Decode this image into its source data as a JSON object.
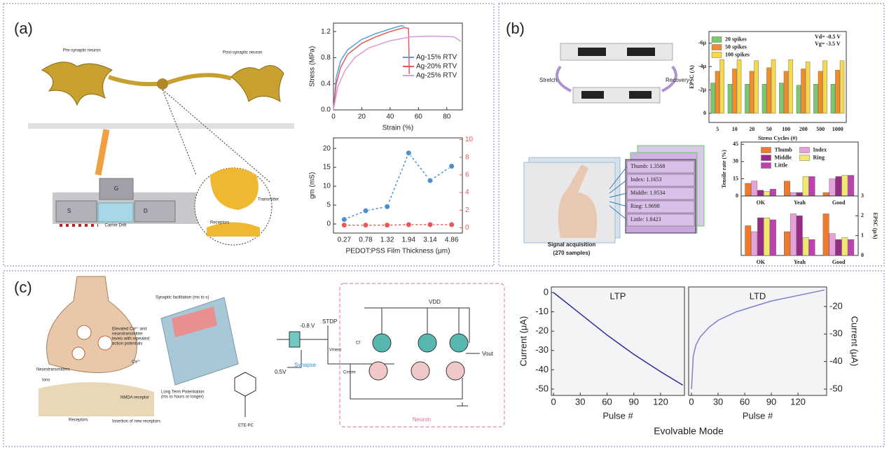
{
  "figure": {
    "a": {
      "label": "(a)",
      "pre": "Pre-synaptic neuron",
      "post": "Post-synaptic neuron",
      "gate": "G",
      "source": "S",
      "drain": "D",
      "drift": "Carrier Drift",
      "transmitter": "Transmitter",
      "receptors": "Receptors"
    },
    "b": {
      "label": "(b)",
      "stretch": "Stretch",
      "recovery": "Recovery",
      "signals": [
        "Thumb: 1.3568",
        "Index: 1.1653",
        "Middle: 1.9534",
        "Ring: 1.9698",
        "Little: 1.8423"
      ],
      "acquisition": "Signal acquisition",
      "samples": "(270 samples)"
    },
    "c": {
      "label": "(c)",
      "facilitation": "Synaptic facilitation (ms to s)",
      "elevated": [
        "Elevated Ca²⁺ and",
        "neurotransmitter",
        "levels with repeated",
        "action potentials"
      ],
      "calcium": "Ca²⁺",
      "neurotransmitters": "Neurotransmitters",
      "ions": "Ions",
      "nmda": "NMDA receptor",
      "receptors": "Receptors",
      "insertion": "Insertion of new receptors",
      "ltp_text": [
        "Long Term Potentiation",
        "(ms to hours or longer)"
      ],
      "molecule": "ETE-PC",
      "circuit": {
        "bias": "-0.8 V",
        "stdp": "STDP",
        "vmem": "Vmem",
        "cf": "Cf",
        "vdd": "VDD",
        "cmem": "Cmem",
        "vout": "Vout",
        "vin": "0.5V",
        "synapse": "Synapse",
        "neuron": "Neuron"
      },
      "mode": "Evolvable Mode"
    }
  },
  "chart_data": [
    {
      "type": "line",
      "xlabel": "Strain (%)",
      "ylabel": "Stress (MPa)",
      "xlim": [
        0,
        91
      ],
      "xticks": [
        0,
        20,
        40,
        60,
        80
      ],
      "ylim": [
        0,
        1.33
      ],
      "yticks": [
        {
          "value": 0,
          "label": "0.0"
        },
        {
          "value": 0.4,
          "label": "0.4"
        },
        {
          "value": 0.8,
          "label": "0.8"
        },
        {
          "value": 1.2,
          "label": "1.2"
        }
      ],
      "legend": "center right",
      "series": [
        {
          "name": "Ag-15% RTV",
          "color": "#4fa3d9",
          "x": [
            0,
            2,
            5,
            10,
            20,
            30,
            40,
            48,
            50
          ],
          "values": [
            0,
            0.5,
            0.75,
            0.92,
            1.08,
            1.17,
            1.24,
            1.29,
            1.28
          ]
        },
        {
          "name": "Ag-20% RTV",
          "color": "#e8585a",
          "x": [
            0,
            2,
            5,
            10,
            20,
            30,
            40,
            50,
            53,
            53.5
          ],
          "values": [
            0,
            0.4,
            0.65,
            0.85,
            1.02,
            1.12,
            1.2,
            1.26,
            1.25,
            0.55
          ]
        },
        {
          "name": "Ag-25% RTV",
          "color": "#d89ad8",
          "x": [
            0,
            3,
            8,
            15,
            25,
            40,
            55,
            70,
            85,
            90
          ],
          "values": [
            0,
            0.35,
            0.6,
            0.8,
            0.95,
            1.06,
            1.12,
            1.13,
            1.12,
            1.05
          ]
        }
      ]
    },
    {
      "type": "line",
      "markers": true,
      "line_style": "dashed",
      "xlabel": "PEDOT:PSS  Film Thickness (μm)",
      "ylabel": "gm (mS)",
      "categories": [
        "0.27",
        "0.78",
        "1.32",
        "1.94",
        "3.14",
        "4.86"
      ],
      "ylim": [
        -2.4,
        22.8
      ],
      "yticks": [
        0,
        5,
        10,
        15,
        20
      ],
      "y2lim": [
        -0.6,
        10.2
      ],
      "y2ticks": [
        0,
        2,
        4,
        6,
        8,
        10
      ],
      "series": [
        {
          "color": "#4a90d0",
          "values": [
            1.2,
            3.5,
            4.6,
            18.8,
            11.5,
            15.3
          ]
        },
        {
          "color": "#e8585a",
          "axis": "y2",
          "values": [
            0.3,
            0.3,
            0.3,
            0.35,
            0.35,
            0.35
          ]
        }
      ]
    },
    {
      "type": "bar",
      "xlabel": "Stress Cycles (#)",
      "ylabel": "EPSC (A)",
      "categories": [
        "5",
        "10",
        "20",
        "50",
        "100",
        "200",
        "500",
        "1000"
      ],
      "ylim": [
        7.8e-07,
        -7e-06
      ],
      "yticks": [
        {
          "value": -6e-06,
          "label": "-6μ"
        },
        {
          "value": -4e-06,
          "label": "-4μ"
        },
        {
          "value": -2e-06,
          "label": "-2μ"
        },
        0
      ],
      "legend": "upper left",
      "annotations": [
        "Vd= -0.5 V",
        "Vg= -3.5 V"
      ],
      "series": [
        {
          "name": "20   spikes",
          "color": "#7bc96f",
          "values": [
            -2.6e-06,
            -2.5e-06,
            -2.5e-06,
            -2.5e-06,
            -2.6e-06,
            -2.4e-06,
            -2.5e-06,
            -2.5e-06
          ]
        },
        {
          "name": "50   spikes",
          "color": "#f28c28",
          "values": [
            -3.6e-06,
            -3.8e-06,
            -3.6e-06,
            -3.9e-06,
            -3.6e-06,
            -3.8e-06,
            -3.6e-06,
            -3.7e-06
          ]
        },
        {
          "name": "100  spikes",
          "color": "#f5d94a",
          "values": [
            -4.6e-06,
            -4.6e-06,
            -4.5e-06,
            -4.6e-06,
            -4.6e-06,
            -4.4e-06,
            -4.5e-06,
            -4.5e-06
          ]
        }
      ]
    },
    {
      "type": "bar",
      "ylabel": "Tensile rate (%)",
      "categories": [
        "OK",
        "Yeah",
        "Good"
      ],
      "ylim": [
        0,
        47
      ],
      "yticks": [
        0,
        15,
        30,
        45
      ],
      "legend": "upper center",
      "legend_columns": 2,
      "series": [
        {
          "name": "Thumb",
          "color": "#f07a2a",
          "values": [
            11,
            13,
            3
          ]
        },
        {
          "name": "Index",
          "color": "#e8a0d8",
          "values": [
            13,
            3,
            15
          ]
        },
        {
          "name": "Middle",
          "color": "#9a2a8a",
          "values": [
            5,
            3,
            17
          ]
        },
        {
          "name": "Ring",
          "color": "#f0e870",
          "values": [
            4,
            17,
            18
          ]
        },
        {
          "name": "Little",
          "color": "#c040b0",
          "values": [
            6,
            17,
            18
          ]
        }
      ]
    },
    {
      "type": "bar",
      "ylabel": "EPSC (μA)",
      "yaxis_side": "right",
      "categories": [
        "OK",
        "Yeah",
        "Good"
      ],
      "ylim": [
        0,
        3
      ],
      "yticks": [
        0,
        1,
        2,
        3
      ],
      "series": [
        {
          "color": "#f07a2a",
          "values": [
            1.5,
            1.2,
            2.1
          ]
        },
        {
          "color": "#e8a0d8",
          "values": [
            1.2,
            2.1,
            1.1
          ]
        },
        {
          "color": "#9a2a8a",
          "values": [
            1.9,
            2.0,
            0.8
          ]
        },
        {
          "color": "#f0e870",
          "values": [
            1.9,
            0.9,
            0.9
          ]
        },
        {
          "color": "#c040b0",
          "values": [
            1.8,
            0.8,
            0.8
          ]
        }
      ]
    },
    {
      "type": "line",
      "title": "LTP",
      "xlabel": "Pulse #",
      "ylabel": "Current (μA)",
      "xlim": [
        -2.4,
        146.7
      ],
      "xticks": [
        0,
        30,
        60,
        90,
        120
      ],
      "ylim": [
        -53.3,
        2.9
      ],
      "yticks": [
        0,
        -10,
        -20,
        -30,
        -40,
        -50
      ],
      "series": [
        {
          "color": "#2a2a9a",
          "x": [
            0,
            30,
            60,
            90,
            120,
            145
          ],
          "values": [
            0,
            -11,
            -22,
            -32,
            -41,
            -48
          ]
        }
      ]
    },
    {
      "type": "line",
      "title": "LTD",
      "xlabel": "Pulse #",
      "ylabel": "Current (μA)",
      "yaxis_side": "right",
      "xlim": [
        -3.2,
        152.3
      ],
      "xticks": [
        0,
        30,
        60,
        90,
        120
      ],
      "ylim": [
        -52.3,
        -12.9
      ],
      "yticks": [
        -20,
        -30,
        -40,
        -50
      ],
      "series": [
        {
          "color": "#7b7fd0",
          "x": [
            0,
            2,
            5,
            10,
            20,
            30,
            50,
            70,
            90,
            120,
            150
          ],
          "values": [
            -50,
            -38,
            -34,
            -31,
            -27.5,
            -25,
            -22,
            -20,
            -18,
            -16,
            -14
          ]
        }
      ]
    }
  ]
}
